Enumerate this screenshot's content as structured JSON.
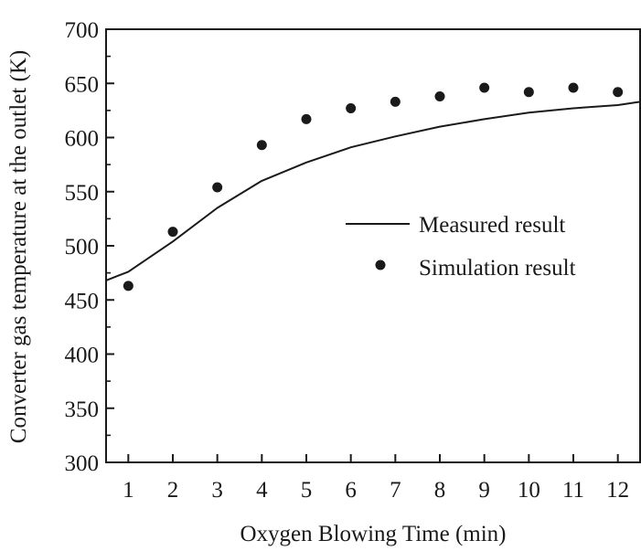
{
  "colors": {
    "ink": "#1a1a1a",
    "background": "#ffffff"
  },
  "chart_data": {
    "type": "line",
    "title": "",
    "xlabel": "Oxygen Blowing Time (min)",
    "ylabel": "Converter gas temperature at the outlet (K)",
    "xlim": [
      0.5,
      12.5
    ],
    "ylim": [
      300,
      700
    ],
    "xticks": [
      1,
      2,
      3,
      4,
      5,
      6,
      7,
      8,
      9,
      10,
      11,
      12
    ],
    "xtick_labels": [
      "1",
      "2",
      "3",
      "4",
      "5",
      "6",
      "7",
      "8",
      "9",
      "10",
      "11",
      "12"
    ],
    "yticks": [
      300,
      350,
      400,
      450,
      500,
      550,
      600,
      650,
      700
    ],
    "ytick_labels": [
      "300",
      "350",
      "400",
      "450",
      "500",
      "550",
      "600",
      "650",
      "700"
    ],
    "grid": false,
    "legend_position": "center-right",
    "series": [
      {
        "name": "Measured result",
        "style": "line",
        "x": [
          0.5,
          1,
          2,
          3,
          4,
          5,
          6,
          7,
          8,
          9,
          10,
          11,
          12,
          12.5
        ],
        "y": [
          468,
          476,
          504,
          535,
          560,
          577,
          591,
          601,
          610,
          617,
          623,
          627,
          630,
          633
        ]
      },
      {
        "name": "Simulation result",
        "style": "marker",
        "x": [
          1,
          2,
          3,
          4,
          5,
          6,
          7,
          8,
          9,
          10,
          11,
          12
        ],
        "y": [
          463,
          513,
          554,
          593,
          617,
          627,
          633,
          638,
          646,
          642,
          646,
          642
        ]
      }
    ]
  }
}
